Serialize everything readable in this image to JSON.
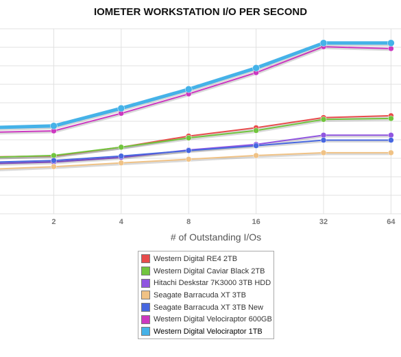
{
  "chart_data": {
    "type": "line",
    "title": "IOMETER WORKSTATION I/O PER SECOND",
    "xlabel": "# of Outstanding I/Os",
    "ylabel": "",
    "x": [
      1,
      2,
      4,
      8,
      16,
      32,
      64
    ],
    "x_tick_labels": [
      "2",
      "4",
      "8",
      "16",
      "32",
      "64"
    ],
    "x_scale": "log2",
    "ylim": [
      0,
      1000
    ],
    "y_gridlines": 10,
    "grid": true,
    "legend_position": "bottom",
    "series": [
      {
        "name": "Western Digital RE4 2TB",
        "color": "#e84c4c",
        "values": [
          307,
          313,
          360,
          420,
          465,
          520,
          530
        ]
      },
      {
        "name": "Western Digital Caviar Black 2TB",
        "color": "#72c53e",
        "values": [
          305,
          315,
          360,
          410,
          450,
          510,
          515
        ]
      },
      {
        "name": "Hitachi Deskstar 7K3000 3TB HDD",
        "color": "#9055e0",
        "values": [
          270,
          280,
          305,
          345,
          375,
          425,
          425
        ]
      },
      {
        "name": "Seagate Barracuda XT 3TB",
        "color": "#f0c285",
        "values": [
          240,
          255,
          275,
          295,
          315,
          330,
          330
        ]
      },
      {
        "name": "Seagate Barracuda XT 3TB New",
        "color": "#4767e0",
        "values": [
          278,
          288,
          312,
          342,
          368,
          398,
          398
        ]
      },
      {
        "name": "Western Digital Velociraptor 600GB",
        "color": "#cc38c0",
        "values": [
          440,
          448,
          543,
          648,
          763,
          903,
          893
        ]
      },
      {
        "name": "Western Digital Velociraptor 1TB",
        "color": "#45b2e8",
        "values": [
          465,
          475,
          570,
          673,
          788,
          923,
          923
        ]
      }
    ]
  }
}
